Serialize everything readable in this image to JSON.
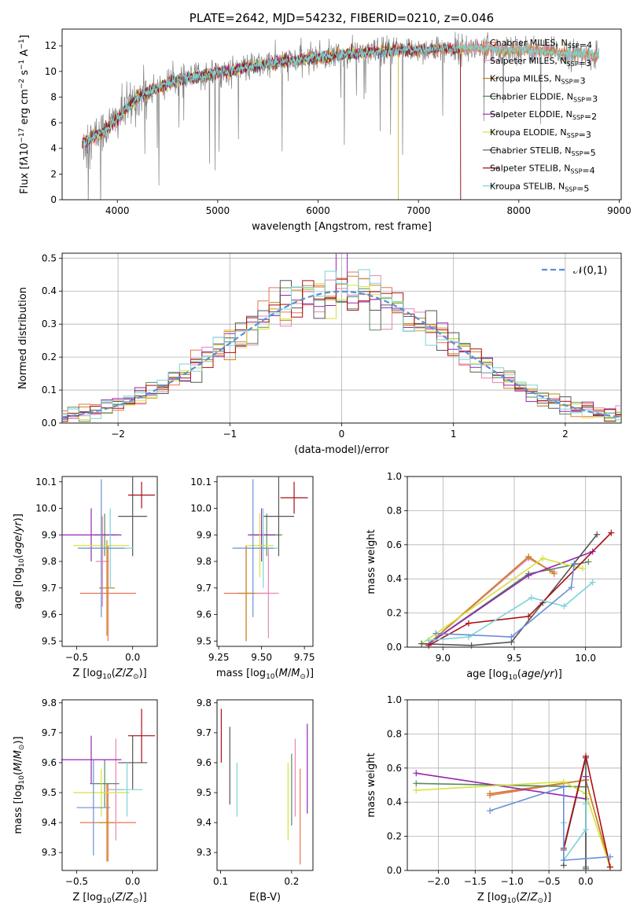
{
  "colors": [
    "#ea7352",
    "#e884b8",
    "#c8851f",
    "#5a8a5c",
    "#9526b0",
    "#d6e23a",
    "#555555",
    "#a90f15",
    "#7ad3d8",
    "#6b8fd6"
  ],
  "model_names": [
    "Chabrier MILES",
    "Salpeter MILES",
    "Kroupa MILES",
    "Chabrier ELODIE",
    "Salpeter ELODIE",
    "Kroupa ELODIE",
    "Chabrier STELIB",
    "Salpeter STELIB",
    "Kroupa STELIB"
  ],
  "chart_data": [
    {
      "id": "spectrum",
      "type": "line",
      "title": "PLATE=2642, MJD=54232, FIBERID=0210, z=0.046",
      "xlabel": "wavelength [Angstrom, rest frame]",
      "ylabel_html": "Flux [f<tspan font-style='italic'>λ</tspan>10<tspan dy='-5' font-size='9'>−17</tspan><tspan dy='5'> erg cm</tspan><tspan dy='-5' font-size='9'>−2</tspan><tspan dy='5'> s</tspan><tspan dy='-5' font-size='9'>−1</tspan><tspan dy='5'> A</tspan><tspan dy='-5' font-size='9'>−1</tspan><tspan dy='5'>]</tspan>",
      "xlim": [
        3450,
        9020
      ],
      "ylim": [
        0,
        13.3
      ],
      "xticks": [
        4000,
        5000,
        6000,
        7000,
        8000,
        9000
      ],
      "yticks": [
        0,
        2,
        4,
        6,
        8,
        10,
        12
      ],
      "legend": [
        "Chabrier MILES, N<sub>SSP</sub>=4",
        "Salpeter MILES, N<sub>SSP</sub>=3",
        "Kroupa MILES, N<sub>SSP</sub>=3",
        "Chabrier ELODIE, N<sub>SSP</sub>=3",
        "Salpeter ELODIE, N<sub>SSP</sub>=2",
        "Kroupa ELODIE, N<sub>SSP</sub>=3",
        "Chabrier STELIB, N<sub>SSP</sub>=5",
        "Salpeter STELIB, N<sub>SSP</sub>=4",
        "Kroupa STELIB, N<sub>SSP</sub>=5"
      ],
      "legend_colors": [
        "#ea7352",
        "#e884b8",
        "#c8851f",
        "#5a8a5c",
        "#9526b0",
        "#d6e23a",
        "#555555",
        "#a90f15",
        "#7ad3d8"
      ],
      "data_range": [
        3650,
        8800
      ],
      "continuum": [
        [
          3650,
          4.5
        ],
        [
          3800,
          5.0
        ],
        [
          4000,
          6.3
        ],
        [
          4200,
          8.0
        ],
        [
          4500,
          9.1
        ],
        [
          5000,
          9.9
        ],
        [
          5500,
          10.6
        ],
        [
          6000,
          11.1
        ],
        [
          6500,
          11.5
        ],
        [
          7000,
          11.7
        ],
        [
          7500,
          11.8
        ],
        [
          8000,
          11.7
        ],
        [
          8500,
          11.4
        ],
        [
          8800,
          11.2
        ]
      ],
      "elodie_dropout": [
        6800,
        0
      ],
      "stelib_dropout": [
        7420,
        0
      ]
    },
    {
      "id": "residual",
      "type": "histogram",
      "xlabel": "(data-model)/error",
      "ylabel": "Normed distribution",
      "xlim": [
        -2.5,
        2.5
      ],
      "ylim": [
        0,
        0.515
      ],
      "xticks": [
        -2,
        -1,
        0,
        1,
        2
      ],
      "xtick_labels": [
        "−2",
        "−1",
        "0",
        "1",
        "2"
      ],
      "yticks": [
        0.0,
        0.1,
        0.2,
        0.3,
        0.4,
        0.5
      ],
      "ytick_labels": [
        "0.0",
        "0.1",
        "0.2",
        "0.3",
        "0.4",
        "0.5"
      ],
      "bin_width": 0.1,
      "legend": "𝒩(0,1)",
      "normal_color": "#5b8fd6"
    },
    {
      "id": "z-age",
      "type": "scatter",
      "xlabel": "Z [log<tspan dy='3' font-size='9'>10</tspan><tspan dy='-3'>(</tspan><tspan font-style='italic'>Z</tspan>/<tspan font-style='italic'>Z</tspan><tspan dy='3' font-size='9'>⊙</tspan><tspan dy='-3'>)]</tspan>",
      "ylabel": "age  [log<tspan dy='3' font-size='9'>10</tspan><tspan dy='-3'>(</tspan><tspan font-style='italic'>age</tspan>/<tspan font-style='italic'>yr</tspan>)]",
      "xlim": [
        -0.63,
        0.22
      ],
      "ylim": [
        9.48,
        10.12
      ],
      "xticks": [
        -0.5,
        0.0
      ],
      "xtick_labels": [
        "−0.5",
        "0.0"
      ],
      "yticks": [
        9.5,
        9.6,
        9.7,
        9.8,
        9.9,
        10.0,
        10.1
      ],
      "points": [
        {
          "x": -0.22,
          "xerr": 0.25,
          "y": 9.68,
          "yerr": 0.18,
          "c": "#ea7352"
        },
        {
          "x": -0.27,
          "xerr": 0.06,
          "y": 9.8,
          "yerr": 0.17,
          "c": "#e884b8"
        },
        {
          "x": -0.23,
          "xerr": 0.07,
          "y": 9.7,
          "yerr": 0.18,
          "c": "#c8851f"
        },
        {
          "x": -0.25,
          "xerr": 0.1,
          "y": 9.9,
          "yerr": 0.08,
          "c": "#5a8a5c"
        },
        {
          "x": -0.37,
          "xerr": 0.27,
          "y": 9.9,
          "yerr": 0.1,
          "c": "#9526b0"
        },
        {
          "x": -0.28,
          "xerr": 0.25,
          "y": 9.86,
          "yerr": 0.12,
          "c": "#d6e23a"
        },
        {
          "x": 0.0,
          "xerr": 0.13,
          "y": 9.97,
          "yerr": 0.15,
          "c": "#555555"
        },
        {
          "x": 0.08,
          "xerr": 0.12,
          "y": 10.05,
          "yerr": 0.05,
          "c": "#a90f15"
        },
        {
          "x": -0.2,
          "xerr": 0.21,
          "y": 9.85,
          "yerr": 0.15,
          "c": "#7ad3d8"
        },
        {
          "x": -0.28,
          "xerr": 0.21,
          "y": 9.85,
          "yerr": 0.26,
          "c": "#6b8fd6"
        }
      ]
    },
    {
      "id": "mass-age",
      "type": "scatter",
      "xlabel": "mass [log<tspan dy='3' font-size='9'>10</tspan><tspan dy='-3'>(</tspan><tspan font-style='italic'>M</tspan>/<tspan font-style='italic'>M</tspan><tspan dy='3' font-size='9'>⊙</tspan><tspan dy='-3'>)]</tspan>",
      "xlim": [
        9.24,
        9.8
      ],
      "ylim": [
        9.48,
        10.12
      ],
      "xticks": [
        9.25,
        9.5,
        9.75
      ],
      "xtick_labels": [
        "9.25",
        "9.50",
        "9.75"
      ],
      "yticks": [
        9.5,
        9.6,
        9.7,
        9.8,
        9.9,
        10.0,
        10.1
      ],
      "points": [
        {
          "x": 9.41,
          "xerr": 0.13,
          "y": 9.68,
          "yerr": 0.18,
          "c": "#ea7352"
        },
        {
          "x": 9.54,
          "xerr": 0.06,
          "y": 9.68,
          "yerr": 0.17,
          "c": "#e884b8"
        },
        {
          "x": 9.41,
          "xerr": 0.05,
          "y": 9.68,
          "yerr": 0.18,
          "c": "#c8851f"
        },
        {
          "x": 9.53,
          "xerr": 0.09,
          "y": 9.9,
          "yerr": 0.08,
          "c": "#5a8a5c"
        },
        {
          "x": 9.5,
          "xerr": 0.08,
          "y": 9.9,
          "yerr": 0.1,
          "c": "#9526b0"
        },
        {
          "x": 9.49,
          "xerr": 0.08,
          "y": 9.86,
          "yerr": 0.12,
          "c": "#d6e23a"
        },
        {
          "x": 9.6,
          "xerr": 0.09,
          "y": 9.97,
          "yerr": 0.15,
          "c": "#555555"
        },
        {
          "x": 9.69,
          "xerr": 0.08,
          "y": 10.04,
          "yerr": 0.06,
          "c": "#a90f15"
        },
        {
          "x": 9.51,
          "xerr": 0.09,
          "y": 9.85,
          "yerr": 0.15,
          "c": "#7ad3d8"
        },
        {
          "x": 9.45,
          "xerr": 0.12,
          "y": 9.85,
          "yerr": 0.26,
          "c": "#6b8fd6"
        }
      ]
    },
    {
      "id": "age-weight",
      "type": "line",
      "xlabel": "age  [log<tspan dy='3' font-size='9'>10</tspan><tspan dy='-3'>(</tspan><tspan font-style='italic'>age</tspan>/<tspan font-style='italic'>yr</tspan>)]",
      "ylabel": "mass weight",
      "xlim": [
        8.75,
        10.25
      ],
      "ylim": [
        0,
        1
      ],
      "xticks": [
        9.0,
        9.5,
        10.0
      ],
      "xtick_labels": [
        "9.0",
        "9.5",
        "10.0"
      ],
      "yticks": [
        0.0,
        0.2,
        0.4,
        0.6,
        0.8,
        1.0
      ],
      "series": [
        {
          "c": "#ea7352",
          "pts": [
            [
              8.9,
              0.02
            ],
            [
              9.6,
              0.53
            ],
            [
              9.75,
              0.45
            ]
          ]
        },
        {
          "c": "#e884b8",
          "pts": [
            [
              8.9,
              0.02
            ],
            [
              9.6,
              0.52
            ],
            [
              9.78,
              0.44
            ]
          ]
        },
        {
          "c": "#c8851f",
          "pts": [
            [
              8.9,
              0.02
            ],
            [
              9.6,
              0.53
            ],
            [
              9.78,
              0.43
            ]
          ]
        },
        {
          "c": "#5a8a5c",
          "pts": [
            [
              8.9,
              0.02
            ],
            [
              9.6,
              0.43
            ],
            [
              10.02,
              0.5
            ]
          ]
        },
        {
          "c": "#9526b0",
          "pts": [
            [
              8.9,
              0.02
            ],
            [
              9.6,
              0.42
            ],
            [
              10.05,
              0.56
            ]
          ]
        },
        {
          "c": "#d6e23a",
          "pts": [
            [
              8.85,
              0.02
            ],
            [
              9.7,
              0.52
            ],
            [
              9.98,
              0.46
            ]
          ]
        },
        {
          "c": "#555555",
          "pts": [
            [
              8.85,
              0.02
            ],
            [
              9.2,
              0.01
            ],
            [
              9.48,
              0.03
            ],
            [
              9.7,
              0.26
            ],
            [
              10.08,
              0.66
            ]
          ]
        },
        {
          "c": "#a90f15",
          "pts": [
            [
              8.9,
              0.01
            ],
            [
              9.18,
              0.14
            ],
            [
              9.6,
              0.18
            ],
            [
              10.18,
              0.67
            ]
          ]
        },
        {
          "c": "#7ad3d8",
          "pts": [
            [
              8.9,
              0.04
            ],
            [
              9.18,
              0.06
            ],
            [
              9.62,
              0.29
            ],
            [
              9.85,
              0.24
            ],
            [
              10.05,
              0.38
            ]
          ]
        },
        {
          "c": "#6b8fd6",
          "pts": [
            [
              8.95,
              0.08
            ],
            [
              9.48,
              0.06
            ],
            [
              9.9,
              0.35
            ],
            [
              9.92,
              0.49
            ]
          ]
        }
      ]
    },
    {
      "id": "z-mass",
      "type": "scatter",
      "xlabel": "Z [log<tspan dy='3' font-size='9'>10</tspan><tspan dy='-3'>(</tspan><tspan font-style='italic'>Z</tspan>/<tspan font-style='italic'>Z</tspan><tspan dy='3' font-size='9'>⊙</tspan><tspan dy='-3'>)]</tspan>",
      "ylabel": "mass [log<tspan dy='3' font-size='9'>10</tspan><tspan dy='-3'>(</tspan><tspan font-style='italic'>M</tspan>/<tspan font-style='italic'>M</tspan><tspan dy='3' font-size='9'>⊙</tspan><tspan dy='-3'>)]</tspan>",
      "xlim": [
        -0.63,
        0.22
      ],
      "ylim": [
        9.24,
        9.81
      ],
      "xticks": [
        -0.5,
        0.0
      ],
      "xtick_labels": [
        "−0.5",
        "0.0"
      ],
      "yticks": [
        9.3,
        9.4,
        9.5,
        9.6,
        9.7,
        9.8
      ],
      "points": [
        {
          "x": -0.22,
          "xerr": 0.25,
          "y": 9.4,
          "yerr": 0.13,
          "c": "#ea7352"
        },
        {
          "x": -0.15,
          "xerr": 0.07,
          "y": 9.51,
          "yerr": 0.17,
          "c": "#e884b8"
        },
        {
          "x": -0.23,
          "xerr": 0.07,
          "y": 9.4,
          "yerr": 0.13,
          "c": "#c8851f"
        },
        {
          "x": -0.25,
          "xerr": 0.13,
          "y": 9.53,
          "yerr": 0.08,
          "c": "#5a8a5c"
        },
        {
          "x": -0.37,
          "xerr": 0.27,
          "y": 9.61,
          "yerr": 0.08,
          "c": "#9526b0"
        },
        {
          "x": -0.28,
          "xerr": 0.25,
          "y": 9.5,
          "yerr": 0.08,
          "c": "#d6e23a"
        },
        {
          "x": 0.0,
          "xerr": 0.13,
          "y": 9.6,
          "yerr": 0.09,
          "c": "#555555"
        },
        {
          "x": 0.08,
          "xerr": 0.12,
          "y": 9.69,
          "yerr": 0.09,
          "c": "#a90f15"
        },
        {
          "x": -0.05,
          "xerr": 0.14,
          "y": 9.51,
          "yerr": 0.09,
          "c": "#7ad3d8"
        },
        {
          "x": -0.35,
          "xerr": 0.15,
          "y": 9.45,
          "yerr": 0.16,
          "c": "#6b8fd6"
        }
      ]
    },
    {
      "id": "ebv-mass",
      "type": "errorbar",
      "xlabel": "E(B-V)",
      "xlim": [
        0.095,
        0.23
      ],
      "ylim": [
        9.24,
        9.81
      ],
      "xticks": [
        0.1,
        0.2
      ],
      "xtick_labels": [
        "0.1",
        "0.2"
      ],
      "yticks": [
        9.3,
        9.4,
        9.5,
        9.6,
        9.7,
        9.8
      ],
      "points": [
        {
          "x": 0.101,
          "y": 9.69,
          "yerr": 0.09,
          "c": "#a90f15"
        },
        {
          "x": 0.123,
          "y": 9.51,
          "yerr": 0.09,
          "c": "#7ad3d8"
        },
        {
          "x": 0.113,
          "y": 9.59,
          "yerr": 0.13,
          "c": "#555555"
        },
        {
          "x": 0.195,
          "y": 9.47,
          "yerr": 0.13,
          "c": "#d6e23a"
        },
        {
          "x": 0.2,
          "y": 9.51,
          "yerr": 0.12,
          "c": "#5a8a5c"
        },
        {
          "x": 0.205,
          "y": 9.55,
          "yerr": 0.13,
          "c": "#e884b8"
        },
        {
          "x": 0.212,
          "y": 9.42,
          "yerr": 0.16,
          "c": "#ea7352"
        },
        {
          "x": 0.222,
          "y": 9.58,
          "yerr": 0.15,
          "c": "#9526b0"
        }
      ]
    },
    {
      "id": "z-weight",
      "type": "line",
      "xlabel": "Z [log<tspan dy='3' font-size='9'>10</tspan><tspan dy='-3'>(</tspan><tspan font-style='italic'>Z</tspan>/<tspan font-style='italic'>Z</tspan><tspan dy='3' font-size='9'>⊙</tspan><tspan dy='-3'>)]</tspan>",
      "ylabel": "mass weight",
      "xlim": [
        -2.42,
        0.48
      ],
      "ylim": [
        0,
        1
      ],
      "xticks": [
        -2.0,
        -1.5,
        -1.0,
        -0.5,
        0.0
      ],
      "xtick_labels": [
        "−2.0",
        "−1.5",
        "−1.0",
        "−0.5",
        "0.0"
      ],
      "yticks": [
        0.0,
        0.2,
        0.4,
        0.6,
        0.8,
        1.0
      ],
      "series": [
        {
          "c": "#ea7352",
          "pts": [
            [
              -1.3,
              0.44
            ],
            [
              0.0,
              0.53
            ],
            [
              0.33,
              0.02
            ]
          ]
        },
        {
          "c": "#e884b8",
          "pts": [
            [
              -1.3,
              0.45
            ],
            [
              0.0,
              0.53
            ],
            [
              0.33,
              0.02
            ]
          ]
        },
        {
          "c": "#c8851f",
          "pts": [
            [
              -1.3,
              0.45
            ],
            [
              0.0,
              0.53
            ],
            [
              0.33,
              0.02
            ]
          ]
        },
        {
          "c": "#5a8a5c",
          "pts": [
            [
              -2.3,
              0.51
            ],
            [
              0.0,
              0.49
            ],
            [
              0.0,
              0.02
            ]
          ]
        },
        {
          "c": "#9526b0",
          "pts": [
            [
              -2.3,
              0.57
            ],
            [
              0.0,
              0.42
            ],
            [
              0.0,
              0.55
            ]
          ]
        },
        {
          "c": "#d6e23a",
          "pts": [
            [
              -2.3,
              0.47
            ],
            [
              -0.3,
              0.52
            ],
            [
              0.0,
              0.45
            ],
            [
              0.33,
              0.02
            ]
          ]
        },
        {
          "c": "#555555",
          "pts": [
            [
              -0.3,
              0.03
            ],
            [
              -0.3,
              0.12
            ],
            [
              0.0,
              0.66
            ],
            [
              0.0,
              0.01
            ]
          ]
        },
        {
          "c": "#a90f15",
          "pts": [
            [
              -0.3,
              0.13
            ],
            [
              0.0,
              0.67
            ],
            [
              0.33,
              0.02
            ]
          ]
        },
        {
          "c": "#7ad3d8",
          "pts": [
            [
              -0.3,
              0.28
            ],
            [
              -0.3,
              0.06
            ],
            [
              0.0,
              0.24
            ],
            [
              0.0,
              0.39
            ]
          ]
        },
        {
          "c": "#6b8fd6",
          "pts": [
            [
              -1.3,
              0.35
            ],
            [
              -0.3,
              0.49
            ],
            [
              -0.3,
              0.06
            ],
            [
              0.33,
              0.08
            ]
          ]
        }
      ]
    }
  ]
}
